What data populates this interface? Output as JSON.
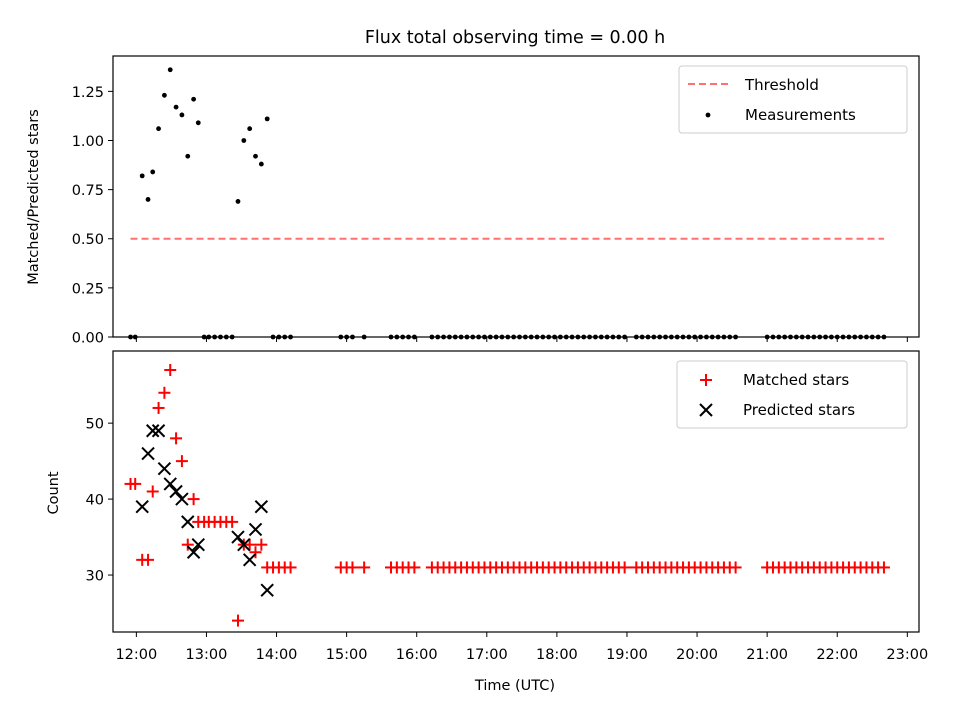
{
  "title": "Flux total observing time = 0.00 h",
  "chart_data": [
    {
      "type": "scatter",
      "ylabel": "Matched/Predicted stars",
      "xlabel": "",
      "xlim": [
        "11:40",
        "23:10"
      ],
      "ylim": [
        0,
        1.43
      ],
      "yticks": [
        "0.00",
        "0.25",
        "0.50",
        "0.75",
        "1.00",
        "1.25"
      ],
      "legend_position": "upper-right",
      "grid": false,
      "series": [
        {
          "name": "Threshold",
          "style": "dashed-line",
          "color": "#ff7070",
          "points": [
            [
              "11:55",
              0.5
            ],
            [
              "22:40",
              0.5
            ]
          ]
        },
        {
          "name": "Measurements",
          "style": "dot",
          "color": "#000000",
          "points": [
            [
              "11:55",
              0
            ],
            [
              "11:59",
              0
            ],
            [
              "12:05",
              0.82
            ],
            [
              "12:10",
              0.7
            ],
            [
              "12:14",
              0.84
            ],
            [
              "12:19",
              1.06
            ],
            [
              "12:24",
              1.23
            ],
            [
              "12:29",
              1.36
            ],
            [
              "12:34",
              1.17
            ],
            [
              "12:39",
              1.13
            ],
            [
              "12:44",
              0.92
            ],
            [
              "12:49",
              1.21
            ],
            [
              "12:53",
              1.09
            ],
            [
              "12:58",
              0
            ],
            [
              "13:02",
              0
            ],
            [
              "13:07",
              0
            ],
            [
              "13:12",
              0
            ],
            [
              "13:17",
              0
            ],
            [
              "13:22",
              0
            ],
            [
              "13:27",
              0.69
            ],
            [
              "13:32",
              1.0
            ],
            [
              "13:37",
              1.06
            ],
            [
              "13:42",
              0.92
            ],
            [
              "13:47",
              0.88
            ],
            [
              "13:52",
              1.11
            ],
            [
              "13:57",
              0
            ],
            [
              "14:02",
              0
            ],
            [
              "14:07",
              0
            ],
            [
              "14:12",
              0
            ],
            [
              "14:55",
              0
            ],
            [
              "15:00",
              0
            ],
            [
              "15:05",
              0
            ],
            [
              "15:15",
              0
            ],
            [
              "15:38",
              0
            ],
            [
              "15:43",
              0
            ],
            [
              "15:48",
              0
            ],
            [
              "15:53",
              0
            ],
            [
              "15:58",
              0
            ],
            [
              "16:13",
              0
            ],
            [
              "16:18",
              0
            ],
            [
              "16:23",
              0
            ],
            [
              "16:28",
              0
            ],
            [
              "16:33",
              0
            ],
            [
              "16:38",
              0
            ],
            [
              "16:43",
              0
            ],
            [
              "16:48",
              0
            ],
            [
              "16:53",
              0
            ],
            [
              "16:58",
              0
            ],
            [
              "17:03",
              0
            ],
            [
              "17:08",
              0
            ],
            [
              "17:13",
              0
            ],
            [
              "17:18",
              0
            ],
            [
              "17:23",
              0
            ],
            [
              "17:28",
              0
            ],
            [
              "17:33",
              0
            ],
            [
              "17:38",
              0
            ],
            [
              "17:43",
              0
            ],
            [
              "17:48",
              0
            ],
            [
              "17:53",
              0
            ],
            [
              "17:58",
              0
            ],
            [
              "18:03",
              0
            ],
            [
              "18:08",
              0
            ],
            [
              "18:13",
              0
            ],
            [
              "18:18",
              0
            ],
            [
              "18:23",
              0
            ],
            [
              "18:28",
              0
            ],
            [
              "18:33",
              0
            ],
            [
              "18:38",
              0
            ],
            [
              "18:43",
              0
            ],
            [
              "18:48",
              0
            ],
            [
              "18:53",
              0
            ],
            [
              "18:58",
              0
            ],
            [
              "19:08",
              0
            ],
            [
              "19:13",
              0
            ],
            [
              "19:18",
              0
            ],
            [
              "19:23",
              0
            ],
            [
              "19:28",
              0
            ],
            [
              "19:33",
              0
            ],
            [
              "19:38",
              0
            ],
            [
              "19:43",
              0
            ],
            [
              "19:48",
              0
            ],
            [
              "19:53",
              0
            ],
            [
              "19:58",
              0
            ],
            [
              "20:03",
              0
            ],
            [
              "20:08",
              0
            ],
            [
              "20:13",
              0
            ],
            [
              "20:18",
              0
            ],
            [
              "20:23",
              0
            ],
            [
              "20:28",
              0
            ],
            [
              "20:33",
              0
            ],
            [
              "21:00",
              0
            ],
            [
              "21:05",
              0
            ],
            [
              "21:10",
              0
            ],
            [
              "21:15",
              0
            ],
            [
              "21:20",
              0
            ],
            [
              "21:25",
              0
            ],
            [
              "21:30",
              0
            ],
            [
              "21:35",
              0
            ],
            [
              "21:40",
              0
            ],
            [
              "21:45",
              0
            ],
            [
              "21:50",
              0
            ],
            [
              "21:55",
              0
            ],
            [
              "22:00",
              0
            ],
            [
              "22:05",
              0
            ],
            [
              "22:10",
              0
            ],
            [
              "22:15",
              0
            ],
            [
              "22:20",
              0
            ],
            [
              "22:25",
              0
            ],
            [
              "22:30",
              0
            ],
            [
              "22:35",
              0
            ],
            [
              "22:40",
              0
            ]
          ]
        }
      ]
    },
    {
      "type": "scatter",
      "ylabel": "Count",
      "xlabel": "Time (UTC)",
      "xlim": [
        "11:40",
        "23:10"
      ],
      "ylim": [
        22.5,
        59.5
      ],
      "yticks": [
        "30",
        "40",
        "50"
      ],
      "xticks": [
        "12:00",
        "13:00",
        "14:00",
        "15:00",
        "16:00",
        "17:00",
        "18:00",
        "19:00",
        "20:00",
        "21:00",
        "22:00",
        "23:00"
      ],
      "legend_position": "upper-right",
      "grid": false,
      "series": [
        {
          "name": "Matched stars",
          "style": "plus",
          "color": "#ff0000",
          "points": [
            [
              "11:55",
              42
            ],
            [
              "11:59",
              42
            ],
            [
              "12:05",
              32
            ],
            [
              "12:10",
              32
            ],
            [
              "12:14",
              41
            ],
            [
              "12:19",
              52
            ],
            [
              "12:24",
              54
            ],
            [
              "12:29",
              57
            ],
            [
              "12:34",
              48
            ],
            [
              "12:39",
              45
            ],
            [
              "12:44",
              34
            ],
            [
              "12:49",
              40
            ],
            [
              "12:53",
              37
            ],
            [
              "12:58",
              37
            ],
            [
              "13:02",
              37
            ],
            [
              "13:07",
              37
            ],
            [
              "13:12",
              37
            ],
            [
              "13:17",
              37
            ],
            [
              "13:22",
              37
            ],
            [
              "13:27",
              24
            ],
            [
              "13:32",
              34
            ],
            [
              "13:37",
              34
            ],
            [
              "13:42",
              33
            ],
            [
              "13:47",
              34
            ],
            [
              "13:52",
              31
            ],
            [
              "13:57",
              31
            ],
            [
              "14:02",
              31
            ],
            [
              "14:07",
              31
            ],
            [
              "14:12",
              31
            ],
            [
              "14:55",
              31
            ],
            [
              "15:00",
              31
            ],
            [
              "15:05",
              31
            ],
            [
              "15:15",
              31
            ],
            [
              "15:38",
              31
            ],
            [
              "15:43",
              31
            ],
            [
              "15:48",
              31
            ],
            [
              "15:53",
              31
            ],
            [
              "15:58",
              31
            ],
            [
              "16:13",
              31
            ],
            [
              "16:18",
              31
            ],
            [
              "16:23",
              31
            ],
            [
              "16:28",
              31
            ],
            [
              "16:33",
              31
            ],
            [
              "16:38",
              31
            ],
            [
              "16:43",
              31
            ],
            [
              "16:48",
              31
            ],
            [
              "16:53",
              31
            ],
            [
              "16:58",
              31
            ],
            [
              "17:03",
              31
            ],
            [
              "17:08",
              31
            ],
            [
              "17:13",
              31
            ],
            [
              "17:18",
              31
            ],
            [
              "17:23",
              31
            ],
            [
              "17:28",
              31
            ],
            [
              "17:33",
              31
            ],
            [
              "17:38",
              31
            ],
            [
              "17:43",
              31
            ],
            [
              "17:48",
              31
            ],
            [
              "17:53",
              31
            ],
            [
              "17:58",
              31
            ],
            [
              "18:03",
              31
            ],
            [
              "18:08",
              31
            ],
            [
              "18:13",
              31
            ],
            [
              "18:18",
              31
            ],
            [
              "18:23",
              31
            ],
            [
              "18:28",
              31
            ],
            [
              "18:33",
              31
            ],
            [
              "18:38",
              31
            ],
            [
              "18:43",
              31
            ],
            [
              "18:48",
              31
            ],
            [
              "18:53",
              31
            ],
            [
              "18:58",
              31
            ],
            [
              "19:08",
              31
            ],
            [
              "19:13",
              31
            ],
            [
              "19:18",
              31
            ],
            [
              "19:23",
              31
            ],
            [
              "19:28",
              31
            ],
            [
              "19:33",
              31
            ],
            [
              "19:38",
              31
            ],
            [
              "19:43",
              31
            ],
            [
              "19:48",
              31
            ],
            [
              "19:53",
              31
            ],
            [
              "19:58",
              31
            ],
            [
              "20:03",
              31
            ],
            [
              "20:08",
              31
            ],
            [
              "20:13",
              31
            ],
            [
              "20:18",
              31
            ],
            [
              "20:23",
              31
            ],
            [
              "20:28",
              31
            ],
            [
              "20:33",
              31
            ],
            [
              "21:00",
              31
            ],
            [
              "21:05",
              31
            ],
            [
              "21:10",
              31
            ],
            [
              "21:15",
              31
            ],
            [
              "21:20",
              31
            ],
            [
              "21:25",
              31
            ],
            [
              "21:30",
              31
            ],
            [
              "21:35",
              31
            ],
            [
              "21:40",
              31
            ],
            [
              "21:45",
              31
            ],
            [
              "21:50",
              31
            ],
            [
              "21:55",
              31
            ],
            [
              "22:00",
              31
            ],
            [
              "22:05",
              31
            ],
            [
              "22:10",
              31
            ],
            [
              "22:15",
              31
            ],
            [
              "22:20",
              31
            ],
            [
              "22:25",
              31
            ],
            [
              "22:30",
              31
            ],
            [
              "22:35",
              31
            ],
            [
              "22:40",
              31
            ]
          ]
        },
        {
          "name": "Predicted stars",
          "style": "x",
          "color": "#000000",
          "points": [
            [
              "12:05",
              39
            ],
            [
              "12:10",
              46
            ],
            [
              "12:14",
              49
            ],
            [
              "12:19",
              49
            ],
            [
              "12:24",
              44
            ],
            [
              "12:29",
              42
            ],
            [
              "12:34",
              41
            ],
            [
              "12:39",
              40
            ],
            [
              "12:44",
              37
            ],
            [
              "12:49",
              33
            ],
            [
              "12:53",
              34
            ],
            [
              "13:27",
              35
            ],
            [
              "13:32",
              34
            ],
            [
              "13:37",
              32
            ],
            [
              "13:42",
              36
            ],
            [
              "13:47",
              39
            ],
            [
              "13:52",
              28
            ]
          ]
        }
      ]
    }
  ]
}
